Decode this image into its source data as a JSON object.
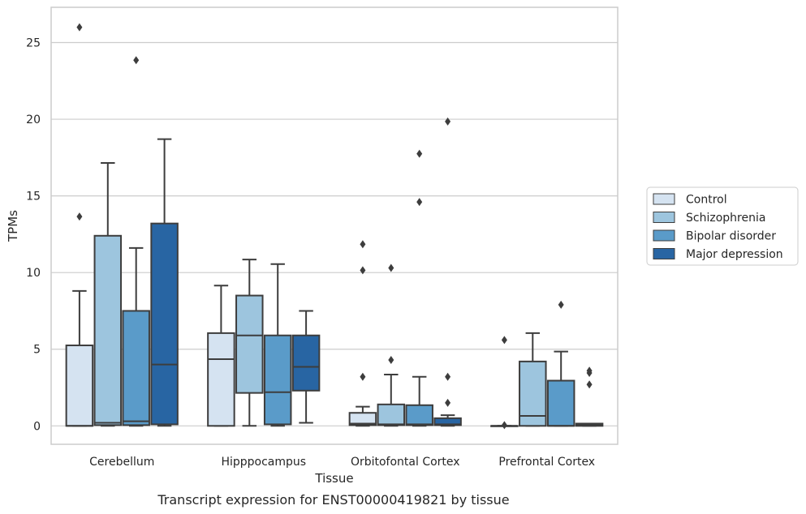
{
  "caption": "Transcript expression for ENST00000419821 by tissue",
  "chart_data": {
    "type": "box",
    "xlabel": "Tissue",
    "ylabel": "TPMs",
    "ylim": [
      -1.2,
      27.3
    ],
    "yticks": [
      0,
      5,
      10,
      15,
      20,
      25
    ],
    "grid": "horizontal",
    "legend_position": "right",
    "categories": [
      "Cerebellum",
      "Hipppocampus",
      "Orbitofontal Cortex",
      "Prefrontal Cortex"
    ],
    "series": [
      {
        "name": "Control",
        "color": "#d5e3f1",
        "boxes": [
          {
            "q1": 0,
            "median": 0,
            "q3": 5.25,
            "whisker_low": 0,
            "whisker_high": 8.8,
            "outliers": [
              13.65,
              26.0
            ]
          },
          {
            "q1": 0,
            "median": 4.35,
            "q3": 6.05,
            "whisker_low": 0,
            "whisker_high": 9.15,
            "outliers": []
          },
          {
            "q1": 0.05,
            "median": 0.15,
            "q3": 0.85,
            "whisker_low": 0,
            "whisker_high": 1.25,
            "outliers": [
              3.2,
              10.15,
              11.85
            ]
          },
          {
            "q1": 0,
            "median": 0,
            "q3": 0,
            "whisker_low": 0,
            "whisker_high": 0,
            "outliers": [
              0.05,
              5.6
            ]
          }
        ]
      },
      {
        "name": "Schizophrenia",
        "color": "#9dc5de",
        "boxes": [
          {
            "q1": 0.05,
            "median": 0.2,
            "q3": 12.4,
            "whisker_low": 0,
            "whisker_high": 17.15,
            "outliers": []
          },
          {
            "q1": 2.15,
            "median": 5.9,
            "q3": 8.5,
            "whisker_low": 0,
            "whisker_high": 10.85,
            "outliers": []
          },
          {
            "q1": 0.05,
            "median": 0.1,
            "q3": 1.4,
            "whisker_low": 0,
            "whisker_high": 3.35,
            "outliers": [
              4.3,
              10.3
            ]
          },
          {
            "q1": 0,
            "median": 0.65,
            "q3": 4.2,
            "whisker_low": 0,
            "whisker_high": 6.05,
            "outliers": []
          }
        ]
      },
      {
        "name": "Bipolar disorder",
        "color": "#5a9bc9",
        "boxes": [
          {
            "q1": 0.05,
            "median": 0.3,
            "q3": 7.5,
            "whisker_low": 0,
            "whisker_high": 11.6,
            "outliers": [
              23.85
            ]
          },
          {
            "q1": 0.1,
            "median": 2.2,
            "q3": 5.9,
            "whisker_low": 0,
            "whisker_high": 10.55,
            "outliers": []
          },
          {
            "q1": 0.05,
            "median": 0.1,
            "q3": 1.35,
            "whisker_low": 0,
            "whisker_high": 3.2,
            "outliers": [
              14.6,
              17.75
            ]
          },
          {
            "q1": 0,
            "median": 0,
            "q3": 2.95,
            "whisker_low": 0,
            "whisker_high": 4.85,
            "outliers": [
              7.9
            ]
          }
        ]
      },
      {
        "name": "Major depression",
        "color": "#2865a3",
        "boxes": [
          {
            "q1": 0.1,
            "median": 4.0,
            "q3": 13.2,
            "whisker_low": 0,
            "whisker_high": 18.7,
            "outliers": []
          },
          {
            "q1": 2.3,
            "median": 3.85,
            "q3": 5.9,
            "whisker_low": 0.2,
            "whisker_high": 7.5,
            "outliers": []
          },
          {
            "q1": 0.05,
            "median": 0.1,
            "q3": 0.5,
            "whisker_low": 0,
            "whisker_high": 0.7,
            "outliers": [
              1.5,
              3.2,
              19.85
            ]
          },
          {
            "q1": 0,
            "median": 0.05,
            "q3": 0.15,
            "whisker_low": 0,
            "whisker_high": 0.15,
            "outliers": [
              2.7,
              3.45,
              3.6
            ]
          }
        ]
      }
    ]
  }
}
